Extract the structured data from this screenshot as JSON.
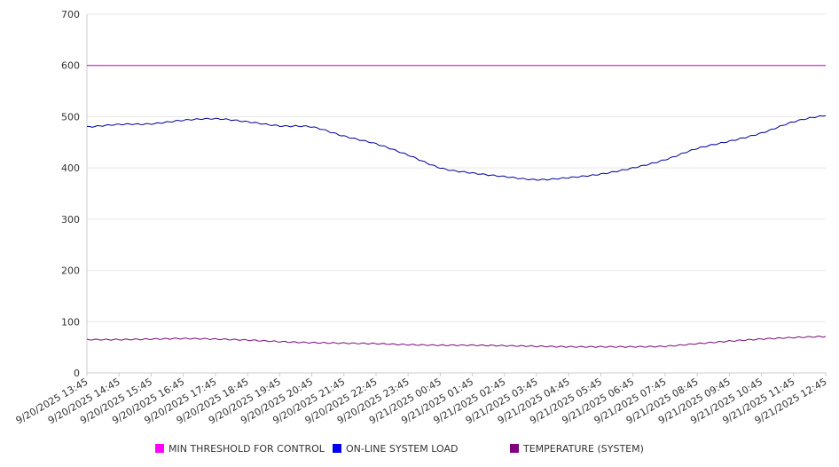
{
  "chart_data": {
    "type": "line",
    "title": "",
    "xlabel": "",
    "ylabel": "",
    "ylim": [
      0,
      700
    ],
    "yticks": [
      0,
      100,
      200,
      300,
      400,
      500,
      600,
      700
    ],
    "grid": true,
    "legend_position": "bottom",
    "x": [
      "9/20/2025 13:45",
      "9/20/2025 14:45",
      "9/20/2025 15:45",
      "9/20/2025 16:45",
      "9/20/2025 17:45",
      "9/20/2025 18:45",
      "9/20/2025 19:45",
      "9/20/2025 20:45",
      "9/20/2025 21:45",
      "9/20/2025 22:45",
      "9/20/2025 23:45",
      "9/21/2025 00:45",
      "9/21/2025 01:45",
      "9/21/2025 02:45",
      "9/21/2025 03:45",
      "9/21/2025 04:45",
      "9/21/2025 05:45",
      "9/21/2025 06:45",
      "9/21/2025 07:45",
      "9/21/2025 08:45",
      "9/21/2025 09:45",
      "9/21/2025 10:45",
      "9/21/2025 11:45",
      "9/21/2025 12:45"
    ],
    "series": [
      {
        "name": "MIN THRESHOLD FOR CONTROL",
        "color": "#cc00cc",
        "values": [
          600,
          600,
          600,
          600,
          600,
          600,
          600,
          600,
          600,
          600,
          600,
          600,
          600,
          600,
          600,
          600,
          600,
          600,
          600,
          600,
          600,
          600,
          600,
          600
        ]
      },
      {
        "name": "ON-LINE SYSTEM LOAD",
        "color": "#000099",
        "values": [
          480,
          485,
          486,
          493,
          496,
          490,
          482,
          480,
          462,
          447,
          425,
          400,
          390,
          383,
          377,
          381,
          388,
          400,
          416,
          438,
          452,
          468,
          490,
          502
        ]
      },
      {
        "name": "TEMPERATURE (SYSTEM)",
        "color": "#7a0a7a",
        "values": [
          65,
          65,
          66,
          67,
          66,
          64,
          61,
          59,
          58,
          57,
          55,
          54,
          54,
          53,
          52,
          51,
          51,
          51,
          52,
          57,
          62,
          66,
          69,
          71
        ]
      }
    ]
  }
}
